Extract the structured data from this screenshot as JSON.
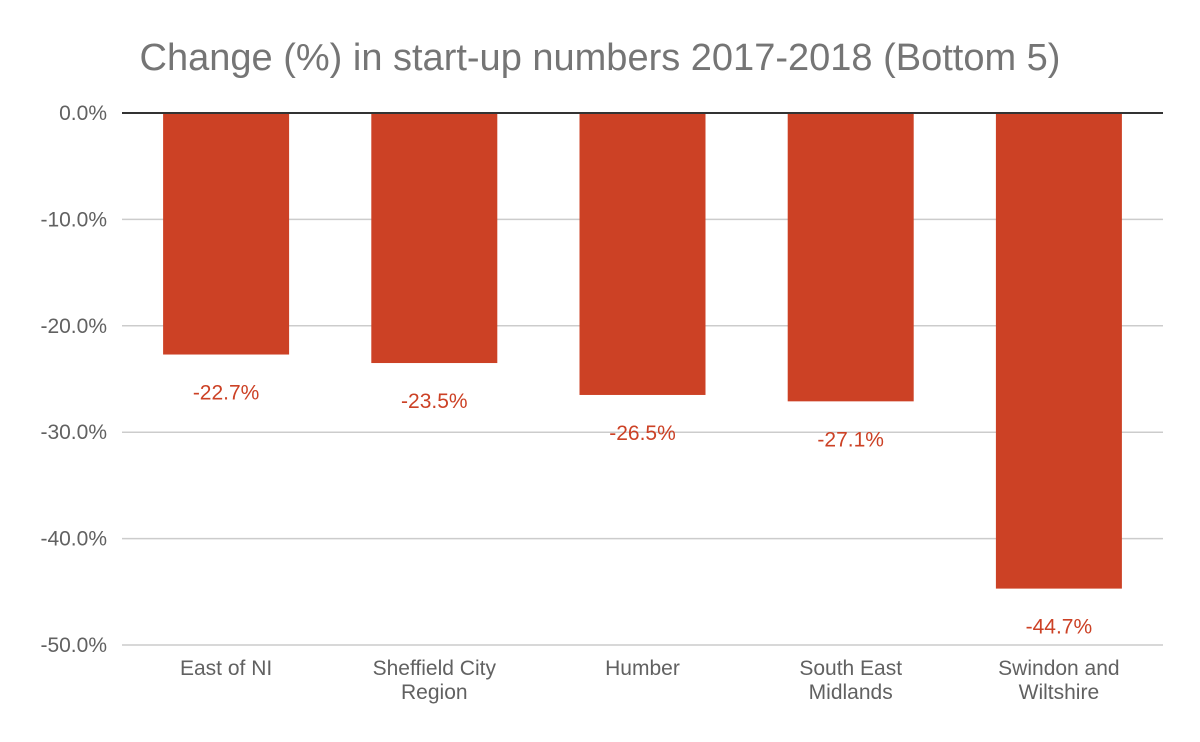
{
  "chart_data": {
    "type": "bar",
    "title": "Change (%) in start-up numbers 2017-2018 (Bottom 5)",
    "categories": [
      [
        "East of NI"
      ],
      [
        "Sheffield City",
        "Region"
      ],
      [
        "Humber"
      ],
      [
        "South East",
        "Midlands"
      ],
      [
        "Swindon and",
        "Wiltshire"
      ]
    ],
    "values": [
      -22.7,
      -23.5,
      -26.5,
      -27.1,
      -44.7
    ],
    "data_labels": [
      "-22.7%",
      "-23.5%",
      "-26.5%",
      "-27.1%",
      "-44.7%"
    ],
    "y_ticks": [
      0,
      -10,
      -20,
      -30,
      -40,
      -50
    ],
    "y_tick_labels": [
      "0.0%",
      "-10.0%",
      "-20.0%",
      "-30.0%",
      "-40.0%",
      "-50.0%"
    ],
    "ylim": [
      -50,
      0
    ],
    "xlabel": "",
    "ylabel": "",
    "grid": true,
    "legend": "none",
    "colors": {
      "bar": "#cc4125",
      "data_label": "#cc4125",
      "grid": "#cccccc",
      "zero_line": "#333333",
      "title": "#757575",
      "tick": "#616161"
    }
  }
}
